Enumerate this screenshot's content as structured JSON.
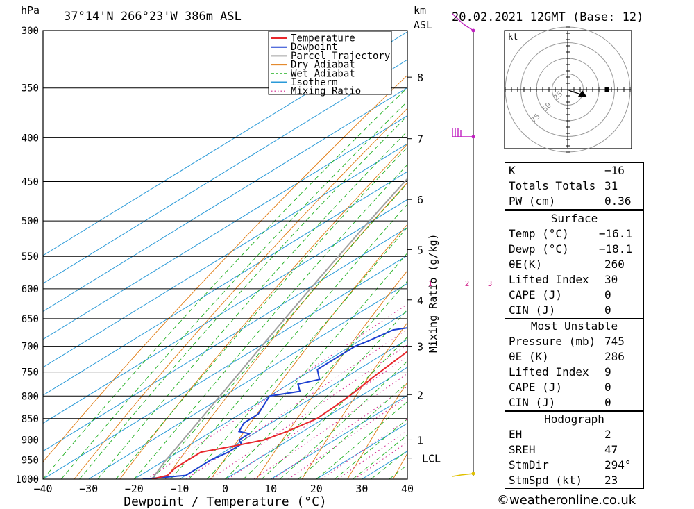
{
  "header": {
    "pressure_unit": "hPa",
    "location": "37°14'N  266°23'W  386m  ASL",
    "km_unit": "km",
    "asl_unit": "ASL",
    "datetime": "20.02.2021  12GMT  (Base: 12)"
  },
  "chart_data": {
    "type": "skew-t",
    "xlabel": "Dewpoint / Temperature (°C)",
    "ylabel": "hPa",
    "xlim": [
      -40,
      40
    ],
    "ylim": [
      1000,
      300
    ],
    "y_scale": "log",
    "x_ticks": [
      "−40",
      "−30",
      "−20",
      "−10",
      "0",
      "10",
      "20",
      "30",
      "40"
    ],
    "pressure_levels": [
      300,
      350,
      400,
      450,
      500,
      550,
      600,
      650,
      700,
      750,
      800,
      850,
      900,
      950,
      1000
    ],
    "km_ticks": [
      {
        "km": "8",
        "p": 340
      },
      {
        "km": "7",
        "p": 401
      },
      {
        "km": "6",
        "p": 472
      },
      {
        "km": "5",
        "p": 540
      },
      {
        "km": "4",
        "p": 618
      },
      {
        "km": "3",
        "p": 700
      },
      {
        "km": "2",
        "p": 797
      },
      {
        "km": "1",
        "p": 900
      }
    ],
    "lcl_label": "LCL",
    "lcl_pressure": 945,
    "mixing_ratio_label": "Mixing Ratio (g/kg)",
    "mixing_ratio_values": [
      "1",
      "2",
      "3",
      "4",
      "6",
      "8",
      "10",
      "16",
      "20",
      "25"
    ],
    "legend": [
      {
        "name": "Temperature",
        "color": "#e8262b",
        "style": "solid"
      },
      {
        "name": "Dewpoint",
        "color": "#1c3fd1",
        "style": "solid"
      },
      {
        "name": "Parcel Trajectory",
        "color": "#a0a0a0",
        "style": "solid"
      },
      {
        "name": "Dry Adiabat",
        "color": "#e07a10",
        "style": "solid"
      },
      {
        "name": "Wet Adiabat",
        "color": "#20b020",
        "style": "dashed"
      },
      {
        "name": "Isotherm",
        "color": "#2a9ad8",
        "style": "solid"
      },
      {
        "name": "Mixing Ratio",
        "color": "#d0208a",
        "style": "dotted"
      }
    ],
    "series": [
      {
        "name": "Temperature",
        "points": [
          [
            1000,
            -16.1
          ],
          [
            990,
            -14
          ],
          [
            970,
            -15
          ],
          [
            950,
            -15
          ],
          [
            930,
            -15
          ],
          [
            915,
            -10
          ],
          [
            900,
            -5.5
          ],
          [
            880,
            -3.5
          ],
          [
            850,
            -1.5
          ],
          [
            820,
            -2
          ],
          [
            800,
            -2.5
          ],
          [
            760,
            -4
          ],
          [
            700,
            -6
          ],
          [
            650,
            -9
          ],
          [
            600,
            -12
          ],
          [
            560,
            -14
          ],
          [
            520,
            -16.5
          ],
          [
            480,
            -18.5
          ],
          [
            450,
            -20.5
          ],
          [
            420,
            -23
          ],
          [
            400,
            -26
          ],
          [
            380,
            -27.5
          ],
          [
            360,
            -28
          ],
          [
            340,
            -28
          ],
          [
            320,
            -29.5
          ],
          [
            300,
            -31
          ]
        ]
      },
      {
        "name": "Dewpoint",
        "points": [
          [
            1000,
            -18.1
          ],
          [
            990,
            -10
          ],
          [
            970,
            -10
          ],
          [
            950,
            -10
          ],
          [
            930,
            -9
          ],
          [
            910,
            -9
          ],
          [
            900,
            -11
          ],
          [
            885,
            -11
          ],
          [
            880,
            -14
          ],
          [
            860,
            -16
          ],
          [
            840,
            -16
          ],
          [
            800,
            -20
          ],
          [
            790,
            -15
          ],
          [
            775,
            -18
          ],
          [
            765,
            -15
          ],
          [
            745,
            -19
          ],
          [
            735,
            -19
          ],
          [
            700,
            -19
          ],
          [
            690,
            -18
          ],
          [
            670,
            -16.5
          ],
          [
            660,
            -10
          ],
          [
            640,
            -10
          ],
          [
            615,
            -12
          ],
          [
            600,
            -15
          ],
          [
            585,
            -21
          ],
          [
            560,
            -15
          ],
          [
            550,
            -14
          ],
          [
            520,
            -24
          ],
          [
            490,
            -33
          ],
          [
            480,
            -25
          ],
          [
            470,
            -38
          ],
          [
            455,
            -33
          ],
          [
            440,
            -31
          ],
          [
            420,
            -31
          ],
          [
            415,
            -39
          ],
          [
            400,
            -41
          ],
          [
            385,
            -43
          ],
          [
            360,
            -45
          ],
          [
            345,
            -44
          ],
          [
            330,
            -45
          ],
          [
            300,
            -47
          ]
        ]
      }
    ]
  },
  "hodograph": {
    "unit_label": "kt",
    "ring_labels": [
      "25",
      "50",
      "75"
    ]
  },
  "indices": {
    "k_label": "K",
    "k_value": "−16",
    "tt_label": "Totals Totals",
    "tt_value": "31",
    "pw_label": "PW (cm)",
    "pw_value": "0.36"
  },
  "surface": {
    "title": "Surface",
    "rows": [
      {
        "label": "Temp (°C)",
        "value": "−16.1"
      },
      {
        "label": "Dewp (°C)",
        "value": "−18.1"
      },
      {
        "label": "θE(K)",
        "value": "260"
      },
      {
        "label": "Lifted Index",
        "value": "30"
      },
      {
        "label": "CAPE (J)",
        "value": "0"
      },
      {
        "label": "CIN (J)",
        "value": "0"
      }
    ]
  },
  "most_unstable": {
    "title": "Most Unstable",
    "rows": [
      {
        "label": "Pressure (mb)",
        "value": "745"
      },
      {
        "label": "θE (K)",
        "value": "286"
      },
      {
        "label": "Lifted Index",
        "value": "9"
      },
      {
        "label": "CAPE (J)",
        "value": "0"
      },
      {
        "label": "CIN (J)",
        "value": "0"
      }
    ]
  },
  "hodograph_stats": {
    "title": "Hodograph",
    "rows": [
      {
        "label": "EH",
        "value": "2"
      },
      {
        "label": "SREH",
        "value": "47"
      },
      {
        "label": "StmDir",
        "value": "294°"
      },
      {
        "label": "StmSpd (kt)",
        "value": "23"
      }
    ]
  },
  "footer": {
    "credit": "©weatheronline.co.uk"
  },
  "colors": {
    "temperature": "#e8262b",
    "dewpoint": "#1c3fd1",
    "parcel": "#a0a0a0",
    "dry_adiabat": "#e07a10",
    "wet_adiabat": "#20b020",
    "isotherm": "#2a9ad8",
    "mixing_ratio": "#d0208a",
    "wind": "#c020c0"
  }
}
